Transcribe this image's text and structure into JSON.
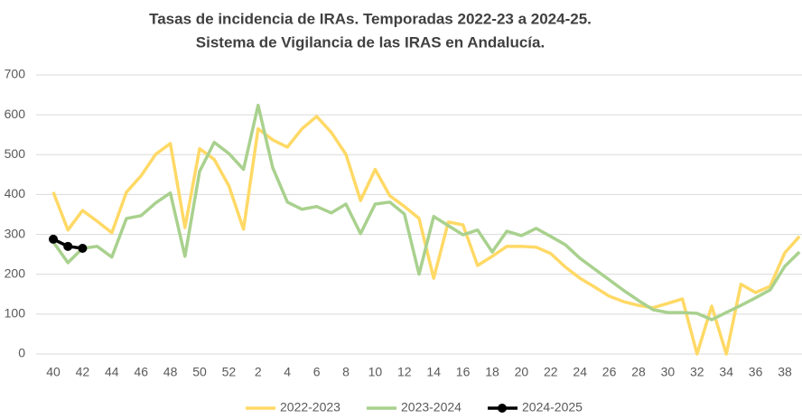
{
  "chart_data": {
    "type": "line",
    "title": "Tasas de incidencia de IRAs. Temporadas 2022-23 a 2024-25.",
    "subtitle": "Sistema de Vigilancia de las IRAS en Andalucía.",
    "categories": [
      "40",
      null,
      "42",
      null,
      "44",
      null,
      "46",
      null,
      "48",
      null,
      "50",
      null,
      "52",
      null,
      "2",
      null,
      "4",
      null,
      "6",
      null,
      "8",
      null,
      "10",
      null,
      "12",
      null,
      "14",
      null,
      "16",
      null,
      "18",
      null,
      "20",
      null,
      "22",
      null,
      "24",
      null,
      "26",
      null,
      "28",
      null,
      "30",
      null,
      "32",
      null,
      "34",
      null,
      "36",
      null,
      "38",
      null
    ],
    "series": [
      {
        "name": "2022-2023",
        "color": "#ffd966",
        "markers": false,
        "values": [
          406,
          311,
          360,
          333,
          304,
          406,
          447,
          501,
          528,
          317,
          515,
          488,
          422,
          313,
          565,
          537,
          519,
          565,
          596,
          556,
          501,
          385,
          463,
          397,
          370,
          340,
          190,
          331,
          324,
          222,
          245,
          270,
          270,
          268,
          252,
          218,
          190,
          168,
          145,
          131,
          122,
          116,
          127,
          138,
          0,
          120,
          0,
          175,
          154,
          170,
          254,
          295
        ]
      },
      {
        "name": "2023-2024",
        "color": "#a9d18e",
        "markers": false,
        "values": [
          281,
          229,
          265,
          270,
          243,
          340,
          347,
          379,
          404,
          245,
          458,
          531,
          503,
          463,
          624,
          467,
          381,
          363,
          370,
          354,
          376,
          302,
          376,
          381,
          351,
          200,
          345,
          322,
          299,
          311,
          256,
          308,
          297,
          315,
          295,
          274,
          240,
          213,
          186,
          159,
          134,
          111,
          104,
          104,
          102,
          86,
          104,
          122,
          141,
          161,
          220,
          256
        ]
      },
      {
        "name": "2024-2025",
        "color": "#000000",
        "markers": true,
        "values": [
          288,
          270,
          265,
          null,
          null,
          null,
          null,
          null,
          null,
          null,
          null,
          null,
          null,
          null,
          null,
          null,
          null,
          null,
          null,
          null,
          null,
          null,
          null,
          null,
          null,
          null,
          null,
          null,
          null,
          null,
          null,
          null,
          null,
          null,
          null,
          null,
          null,
          null,
          null,
          null,
          null,
          null,
          null,
          null,
          null,
          null,
          null,
          null,
          null,
          null,
          null,
          null
        ]
      }
    ],
    "ylim": [
      0,
      700
    ],
    "yticks": [
      0,
      100,
      200,
      300,
      400,
      500,
      600,
      700
    ],
    "grid": true,
    "legend": "bottom"
  }
}
